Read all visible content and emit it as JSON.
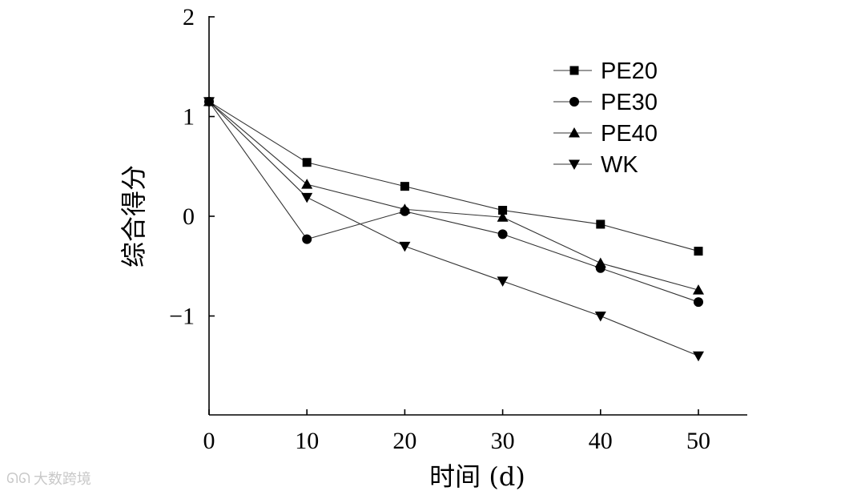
{
  "chart_data": {
    "type": "line",
    "title": "",
    "xlabel": "时间 (d)",
    "ylabel": "综合得分",
    "x": [
      0,
      10,
      20,
      30,
      40,
      50
    ],
    "xticks": [
      0,
      10,
      20,
      30,
      40,
      50
    ],
    "xtick_labels": [
      "0",
      "10",
      "20",
      "30",
      "40",
      "50"
    ],
    "yticks": [
      -1,
      0,
      1,
      2
    ],
    "ytick_labels": [
      "−1",
      "0",
      "1",
      "2"
    ],
    "xlim": [
      0,
      55
    ],
    "ylim": [
      -2,
      2
    ],
    "grid": false,
    "legend_position": "top-right",
    "series": [
      {
        "name": "PE20",
        "marker": "square",
        "values": [
          1.15,
          0.54,
          0.3,
          0.06,
          -0.08,
          -0.35
        ]
      },
      {
        "name": "PE30",
        "marker": "circle",
        "values": [
          1.15,
          -0.23,
          0.05,
          -0.18,
          -0.52,
          -0.86
        ]
      },
      {
        "name": "PE40",
        "marker": "triangle-up",
        "values": [
          1.15,
          0.32,
          0.07,
          -0.01,
          -0.47,
          -0.74
        ]
      },
      {
        "name": "WK",
        "marker": "triangle-down",
        "values": [
          1.15,
          0.19,
          -0.3,
          -0.65,
          -1.0,
          -1.4
        ]
      }
    ]
  },
  "watermark": {
    "icon": "chat-bubble-icon",
    "text": "大数跨境"
  }
}
